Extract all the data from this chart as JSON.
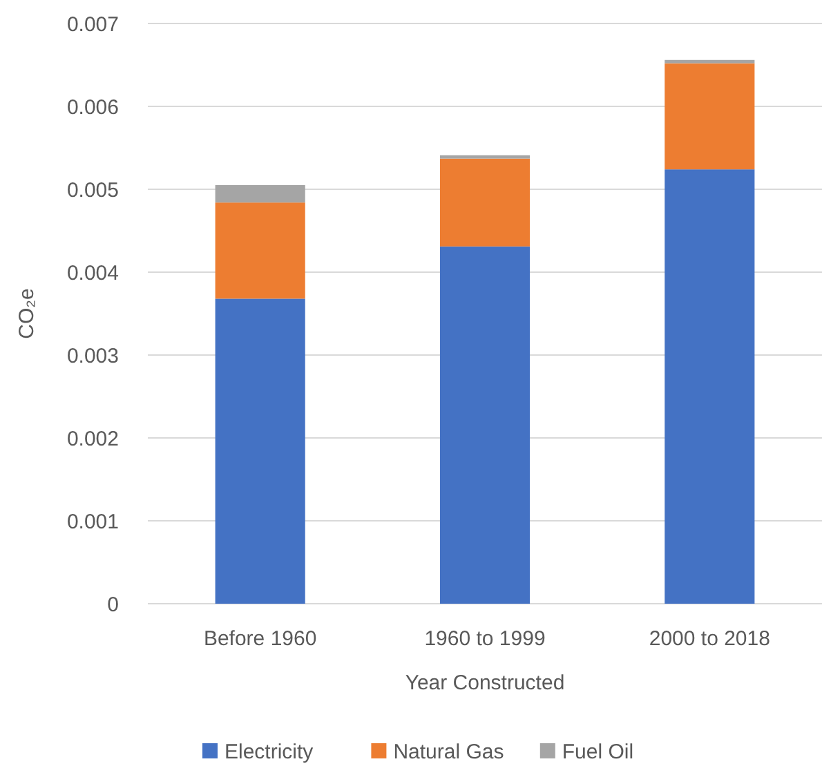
{
  "chart_data": {
    "type": "bar",
    "stacked": true,
    "ylabel": "CO₂e",
    "xlabel": "Year Constructed",
    "categories": [
      "Before 1960",
      "1960 to 1999",
      "2000 to 2018"
    ],
    "series": [
      {
        "name": "Electricity",
        "color": "#4472c4",
        "values": [
          0.00368,
          0.00431,
          0.00524
        ]
      },
      {
        "name": "Natural Gas",
        "color": "#ed7d31",
        "values": [
          0.00116,
          0.00106,
          0.00128
        ]
      },
      {
        "name": "Fuel Oil",
        "color": "#a5a5a5",
        "values": [
          0.00021,
          4e-05,
          4e-05
        ]
      }
    ],
    "ylim": [
      0,
      0.007
    ],
    "yticks": [
      0,
      0.001,
      0.002,
      0.003,
      0.004,
      0.005,
      0.006,
      0.007
    ],
    "grid": "y",
    "legend": "bottom"
  }
}
